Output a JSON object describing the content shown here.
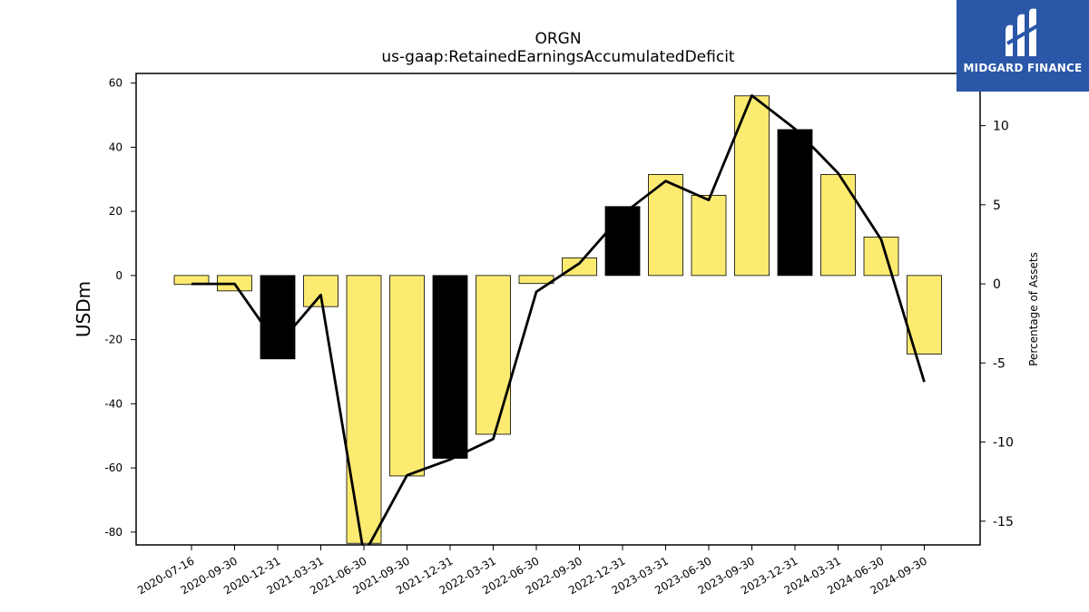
{
  "brand": {
    "name": "MIDGARD FINANCE",
    "bg_color": "#2a57a8"
  },
  "chart_data": {
    "type": "bar",
    "title": "ORGN",
    "subtitle": "us-gaap:RetainedEarningsAccumulatedDeficit",
    "ylabel": "USDm",
    "y2label": "Percentage of Assets",
    "categories": [
      "2020-07-16",
      "2020-09-30",
      "2020-12-31",
      "2021-03-31",
      "2021-06-30",
      "2021-09-30",
      "2021-12-31",
      "2022-03-31",
      "2022-06-30",
      "2022-09-30",
      "2022-12-31",
      "2023-03-31",
      "2023-06-30",
      "2023-09-30",
      "2023-12-31",
      "2024-03-31",
      "2024-06-30",
      "2024-09-30"
    ],
    "values": [
      -2.8,
      -4.8,
      -26.0,
      -9.7,
      -83.5,
      -62.5,
      -57.0,
      -49.5,
      -2.5,
      5.5,
      21.5,
      31.5,
      25.0,
      56.0,
      45.5,
      31.5,
      12.0,
      -24.5
    ],
    "bar_colors": [
      "#fdeb71",
      "#fdeb71",
      "#000000",
      "#fdeb71",
      "#fdeb71",
      "#fdeb71",
      "#000000",
      "#fdeb71",
      "#fdeb71",
      "#fdeb71",
      "#000000",
      "#fdeb71",
      "#fdeb71",
      "#fdeb71",
      "#000000",
      "#fdeb71",
      "#fdeb71",
      "#fdeb71"
    ],
    "line_values": [
      0.0,
      0.0,
      -3.9,
      -0.7,
      -17.1,
      -12.1,
      -11.1,
      -9.8,
      -0.5,
      1.3,
      4.4,
      6.5,
      5.3,
      11.9,
      9.8,
      7.0,
      2.8,
      -6.2
    ],
    "ylim": [
      -84,
      63
    ],
    "y2lim": [
      -16.5,
      13.3
    ],
    "yticks": [
      -80,
      -60,
      -40,
      -20,
      0,
      20,
      40,
      60
    ],
    "y2ticks": [
      -15,
      -10,
      -5,
      0,
      5,
      10
    ],
    "grid": false
  }
}
